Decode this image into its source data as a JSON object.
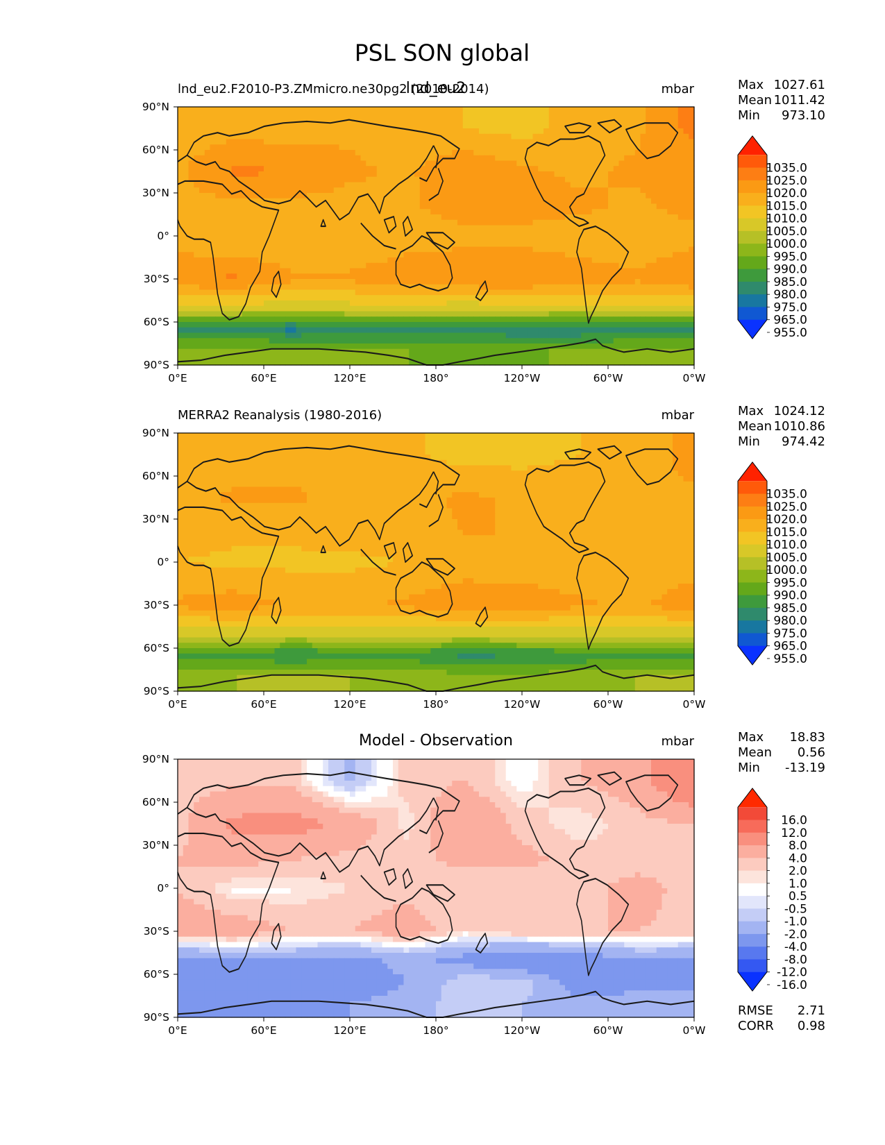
{
  "figure": {
    "title": "PSL SON global"
  },
  "chart_data": [
    {
      "type": "heatmap",
      "panel": "test",
      "title": "lnd_eu2",
      "left_label": "lnd_eu2.F2010-P3.ZMmicro.ne30pg2 (2010-2014)",
      "units": "mbar",
      "stats": {
        "max_label": "Max",
        "max": "1027.61",
        "mean_label": "Mean",
        "mean": "1011.42",
        "min_label": "Min",
        "min": "973.10"
      },
      "x_ticks": [
        "0°E",
        "60°E",
        "120°E",
        "180°",
        "120°W",
        "60°W",
        "0°W"
      ],
      "y_ticks": [
        "90°N",
        "60°N",
        "30°N",
        "0°",
        "30°S",
        "60°S",
        "90°S"
      ],
      "xlim": [
        0,
        360
      ],
      "ylim": [
        -90,
        90
      ],
      "colorbar": {
        "levels": [
          "1035.0",
          "1025.0",
          "1020.0",
          "1015.0",
          "1010.0",
          "1005.0",
          "1000.0",
          "995.0",
          "990.0",
          "985.0",
          "980.0",
          "975.0",
          "965.0",
          "955.0"
        ],
        "colors": [
          "#ff2200",
          "#ff5a0a",
          "#fd7e14",
          "#fb9a14",
          "#f9af1c",
          "#f2c524",
          "#d8c828",
          "#b6c026",
          "#8db61a",
          "#64a81a",
          "#3e9a3c",
          "#2f8a6c",
          "#1877a0",
          "#1058d2",
          "#0a32ff"
        ]
      },
      "field": [
        {
          "lat": 75,
          "values": [
            1012,
            1013,
            1012,
            1014,
            1012,
            1010,
            1008,
            1012,
            1014,
            1022
          ]
        },
        {
          "lat": 45,
          "values": [
            1014,
            1021,
            1020,
            1016,
            1014,
            1020,
            1016,
            1014,
            1016,
            1016
          ]
        },
        {
          "lat": 20,
          "values": [
            1014,
            1013,
            1013,
            1013,
            1014,
            1018,
            1018,
            1016,
            1014,
            1017
          ]
        },
        {
          "lat": 0,
          "values": [
            1012,
            1010,
            1010,
            1010,
            1012,
            1013,
            1013,
            1012,
            1011,
            1013
          ]
        },
        {
          "lat": -30,
          "values": [
            1019,
            1021,
            1016,
            1016,
            1019,
            1020,
            1020,
            1018,
            1016,
            1020
          ]
        },
        {
          "lat": -50,
          "values": [
            1003,
            1003,
            1002,
            1003,
            1003,
            1002,
            1003,
            1003,
            1004,
            1003
          ]
        },
        {
          "lat": -65,
          "values": [
            977,
            976,
            974,
            976,
            976,
            978,
            976,
            975,
            978,
            977
          ]
        },
        {
          "lat": -80,
          "values": [
            992,
            993,
            994,
            992,
            990,
            989,
            988,
            992,
            992,
            993
          ]
        }
      ]
    },
    {
      "type": "heatmap",
      "panel": "reference",
      "title": "",
      "left_label": "MERRA2 Reanalysis (1980-2016)",
      "units": "mbar",
      "stats": {
        "max_label": "Max",
        "max": "1024.12",
        "mean_label": "Mean",
        "mean": "1010.86",
        "min_label": "Min",
        "min": "974.42"
      },
      "x_ticks": [
        "0°E",
        "60°E",
        "120°E",
        "180°",
        "120°W",
        "60°W",
        "0°W"
      ],
      "y_ticks": [
        "90°N",
        "60°N",
        "30°N",
        "0°",
        "30°S",
        "60°S",
        "90°S"
      ],
      "xlim": [
        0,
        360
      ],
      "ylim": [
        -90,
        90
      ],
      "colorbar": {
        "levels": [
          "1035.0",
          "1025.0",
          "1020.0",
          "1015.0",
          "1010.0",
          "1005.0",
          "1000.0",
          "995.0",
          "990.0",
          "985.0",
          "980.0",
          "975.0",
          "965.0",
          "955.0"
        ],
        "colors": [
          "#ff2200",
          "#ff5a0a",
          "#fd7e14",
          "#fb9a14",
          "#f9af1c",
          "#f2c524",
          "#d8c828",
          "#b6c026",
          "#8db61a",
          "#64a81a",
          "#3e9a3c",
          "#2f8a6c",
          "#1877a0",
          "#1058d2",
          "#0a32ff"
        ]
      },
      "field": [
        {
          "lat": 75,
          "values": [
            1011,
            1012,
            1012,
            1013,
            1011,
            1008,
            1008,
            1010,
            1012,
            1017
          ]
        },
        {
          "lat": 45,
          "values": [
            1013,
            1016,
            1016,
            1013,
            1013,
            1016,
            1014,
            1013,
            1015,
            1014
          ]
        },
        {
          "lat": 20,
          "values": [
            1012,
            1011,
            1011,
            1012,
            1013,
            1015,
            1015,
            1014,
            1013,
            1015
          ]
        },
        {
          "lat": 0,
          "values": [
            1010,
            1009,
            1009,
            1009,
            1010,
            1012,
            1012,
            1011,
            1010,
            1012
          ]
        },
        {
          "lat": -30,
          "values": [
            1016,
            1018,
            1014,
            1014,
            1016,
            1019,
            1018,
            1016,
            1014,
            1019
          ]
        },
        {
          "lat": -50,
          "values": [
            1002,
            1002,
            1001,
            1001,
            1002,
            1001,
            1002,
            1002,
            1003,
            1002
          ]
        },
        {
          "lat": -65,
          "values": [
            983,
            982,
            980,
            982,
            982,
            979,
            980,
            981,
            983,
            983
          ]
        },
        {
          "lat": -80,
          "values": [
            994,
            995,
            996,
            995,
            994,
            992,
            991,
            994,
            995,
            995
          ]
        }
      ]
    },
    {
      "type": "heatmap",
      "panel": "diff",
      "title": "Model - Observation",
      "left_label": "",
      "units": "mbar",
      "stats": {
        "max_label": "Max",
        "max": "18.83",
        "mean_label": "Mean",
        "mean": "0.56",
        "min_label": "Min",
        "min": "-13.19"
      },
      "metrics": {
        "rmse_label": "RMSE",
        "rmse": "2.71",
        "corr_label": "CORR",
        "corr": "0.98"
      },
      "x_ticks": [
        "0°E",
        "60°E",
        "120°E",
        "180°",
        "120°W",
        "60°W",
        "0°W"
      ],
      "y_ticks": [
        "90°N",
        "60°N",
        "30°N",
        "0°",
        "30°S",
        "60°S",
        "90°S"
      ],
      "xlim": [
        0,
        360
      ],
      "ylim": [
        -90,
        90
      ],
      "colorbar": {
        "levels": [
          "16.0",
          "12.0",
          "8.0",
          "4.0",
          "2.0",
          "1.0",
          "0.5",
          "-0.5",
          "-1.0",
          "-2.0",
          "-4.0",
          "-8.0",
          "-12.0",
          "-16.0"
        ],
        "colors": [
          "#ff2a00",
          "#f24a38",
          "#f76b5a",
          "#f98f7e",
          "#fbae9f",
          "#fccbbf",
          "#fde4dc",
          "#ffffff",
          "#e2e6fb",
          "#c4cdf6",
          "#a3b4f2",
          "#7d97ee",
          "#5878ef",
          "#3458f2",
          "#0a32ff"
        ]
      },
      "field": [
        {
          "lat": 75,
          "values": [
            1.5,
            1.5,
            1.5,
            -2.5,
            1.5,
            2,
            0,
            2,
            3,
            7
          ]
        },
        {
          "lat": 45,
          "values": [
            1.5,
            4.5,
            5,
            3.5,
            0.6,
            4,
            1.5,
            0.5,
            1.5,
            2
          ]
        },
        {
          "lat": 20,
          "values": [
            2,
            2.5,
            2,
            1.5,
            1.5,
            2.5,
            2.5,
            1.5,
            1,
            2
          ]
        },
        {
          "lat": 0,
          "values": [
            2,
            0.3,
            0.4,
            1,
            1.5,
            1,
            1,
            1,
            3,
            1
          ]
        },
        {
          "lat": -30,
          "values": [
            3,
            3,
            2,
            2,
            3,
            1,
            2,
            2,
            2,
            1.5
          ]
        },
        {
          "lat": -50,
          "values": [
            -5,
            -4,
            -4,
            -5,
            -3,
            -5,
            -7,
            -6,
            -4,
            -4
          ]
        },
        {
          "lat": -65,
          "values": [
            -5,
            -6,
            -5,
            -6,
            -4,
            -1,
            -1,
            -6,
            -5,
            -5
          ]
        },
        {
          "lat": -80,
          "values": [
            -5,
            -6,
            -6,
            -4,
            -3,
            -1,
            -2,
            -3,
            -3,
            -2
          ]
        }
      ]
    }
  ]
}
